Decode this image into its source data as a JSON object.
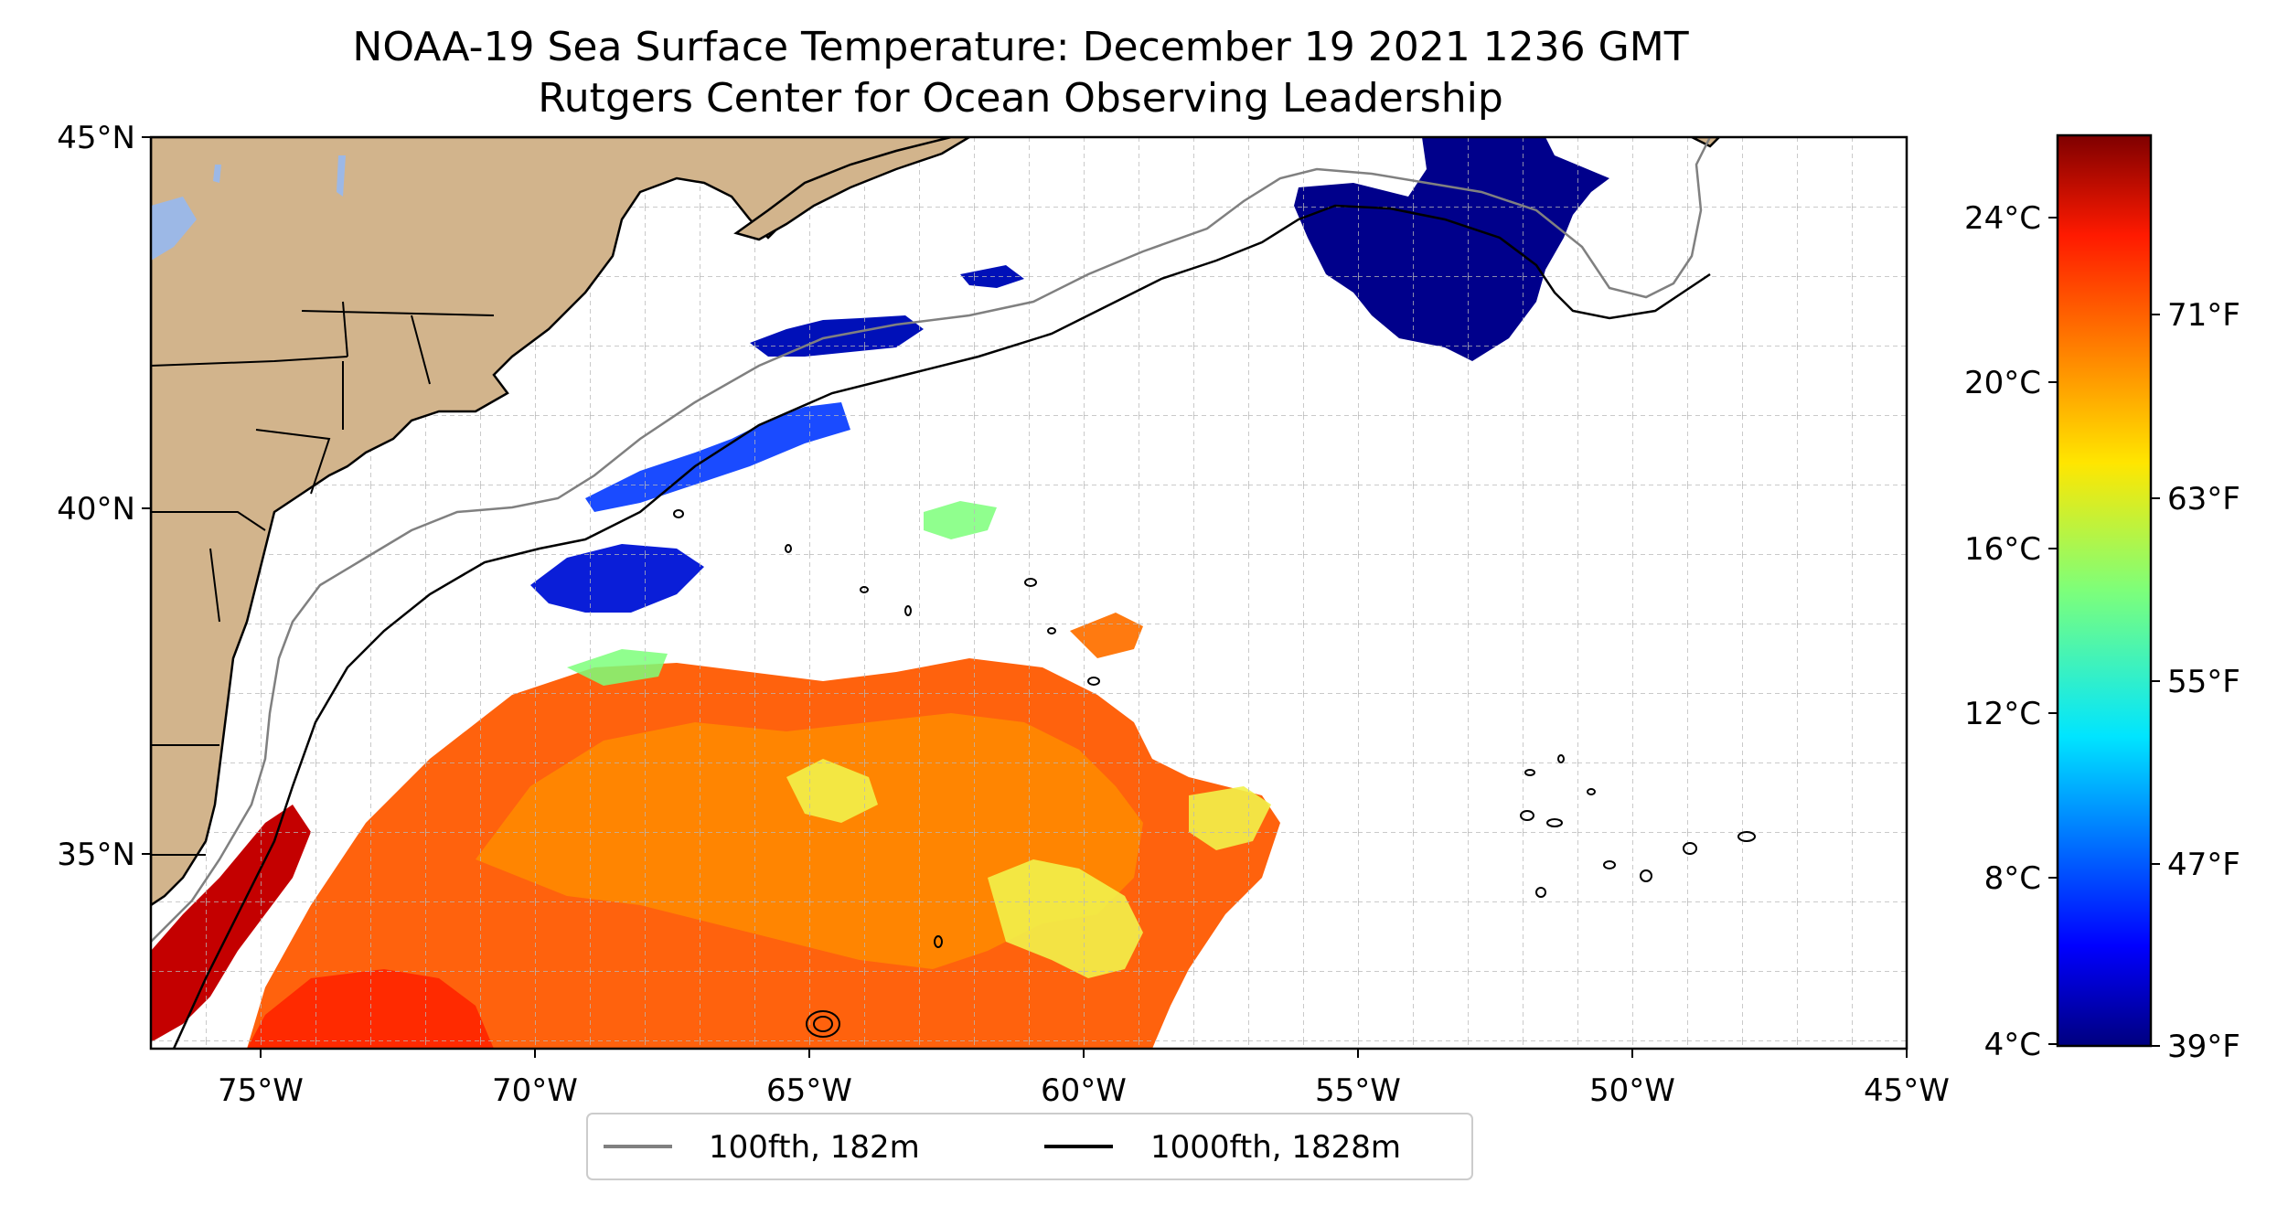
{
  "title": "NOAA-19 Sea Surface Temperature: December 19 2021 1236 GMT",
  "subtitle": "Rutgers Center for Ocean Observing Leadership",
  "map": {
    "lon_range": [
      -77,
      -45
    ],
    "lat_range": [
      32.2,
      45
    ],
    "lon_ticks": [
      "75°W",
      "70°W",
      "65°W",
      "60°W",
      "55°W",
      "50°W",
      "45°W"
    ],
    "lat_ticks": [
      "45°N",
      "40°N",
      "35°N"
    ],
    "gridlines": true,
    "land_color": "#d2b48c",
    "lake_color": "#9cb8e6"
  },
  "colorbar": {
    "colormap": "jet",
    "range_celsius": [
      4,
      26
    ],
    "celsius_ticks": [
      "24°C",
      "20°C",
      "16°C",
      "12°C",
      "8°C",
      "4°C"
    ],
    "fahrenheit_ticks": [
      "71°F",
      "63°F",
      "55°F",
      "47°F",
      "39°F"
    ]
  },
  "legend": {
    "items": [
      {
        "label": "100fth, 182m",
        "color": "#808080"
      },
      {
        "label": "1000fth, 1828m",
        "color": "#000000"
      }
    ]
  }
}
